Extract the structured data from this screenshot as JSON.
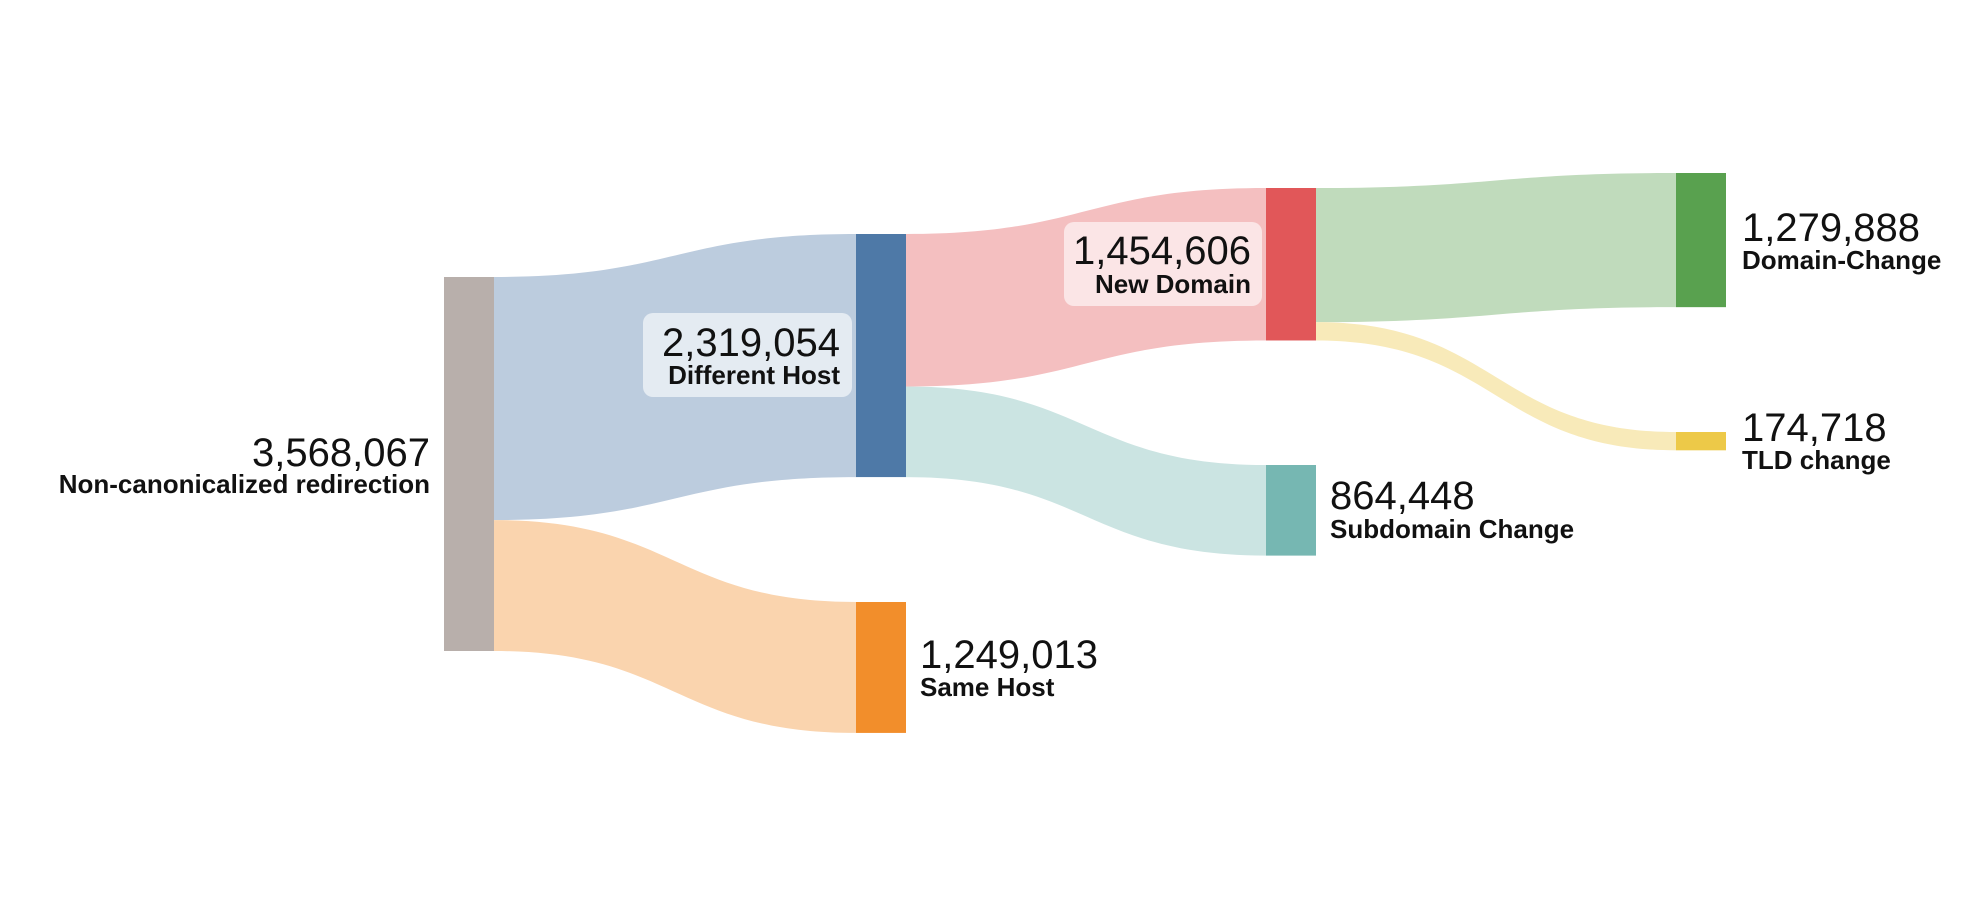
{
  "chart_data": {
    "type": "sankey",
    "title": "",
    "colors": {
      "root": "#b8afab",
      "different_host": "#4e79a7",
      "same_host": "#f28e2b",
      "new_domain": "#e15759",
      "subdomain_change": "#76b7b2",
      "domain_change": "#59a14f",
      "tld_change": "#edc948"
    },
    "nodes": [
      {
        "id": "root",
        "value_label": "3,568,067",
        "name": "Non-canonicalized redirection",
        "value": 3568067
      },
      {
        "id": "different_host",
        "value_label": "2,319,054",
        "name": "Different Host",
        "value": 2319054
      },
      {
        "id": "same_host",
        "value_label": "1,249,013",
        "name": "Same Host",
        "value": 1249013
      },
      {
        "id": "new_domain",
        "value_label": "1,454,606",
        "name": "New Domain",
        "value": 1454606
      },
      {
        "id": "subdomain_change",
        "value_label": "864,448",
        "name": "Subdomain Change",
        "value": 864448
      },
      {
        "id": "domain_change",
        "value_label": "1,279,888",
        "name": "Domain-Change",
        "value": 1279888
      },
      {
        "id": "tld_change",
        "value_label": "174,718",
        "name": "TLD change",
        "value": 174718
      }
    ],
    "links": [
      {
        "source": "root",
        "target": "different_host",
        "value": 2319054
      },
      {
        "source": "root",
        "target": "same_host",
        "value": 1249013
      },
      {
        "source": "different_host",
        "target": "new_domain",
        "value": 1454606
      },
      {
        "source": "different_host",
        "target": "subdomain_change",
        "value": 864448
      },
      {
        "source": "new_domain",
        "target": "domain_change",
        "value": 1279888
      },
      {
        "source": "new_domain",
        "target": "tld_change",
        "value": 174718
      }
    ]
  }
}
